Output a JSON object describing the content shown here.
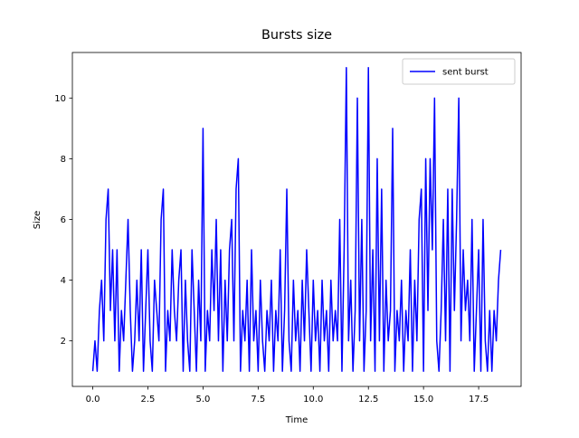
{
  "chart_data": {
    "type": "line",
    "title": "Bursts size",
    "x_label": "Time",
    "y_label": "Size",
    "x": [
      0.0,
      0.1,
      0.2,
      0.3,
      0.4,
      0.5,
      0.6,
      0.7,
      0.8,
      0.9,
      1.0,
      1.1,
      1.2,
      1.3,
      1.4,
      1.5,
      1.6,
      1.7,
      1.8,
      1.9,
      2.0,
      2.1,
      2.2,
      2.3,
      2.4,
      2.5,
      2.6,
      2.7,
      2.8,
      2.9,
      3.0,
      3.1,
      3.2,
      3.3,
      3.4,
      3.5,
      3.6,
      3.7,
      3.8,
      3.9,
      4.0,
      4.1,
      4.2,
      4.3,
      4.4,
      4.5,
      4.6,
      4.7,
      4.8,
      4.9,
      5.0,
      5.1,
      5.2,
      5.3,
      5.4,
      5.5,
      5.6,
      5.7,
      5.8,
      5.9,
      6.0,
      6.1,
      6.2,
      6.3,
      6.4,
      6.5,
      6.6,
      6.7,
      6.8,
      6.9,
      7.0,
      7.1,
      7.2,
      7.3,
      7.4,
      7.5,
      7.6,
      7.7,
      7.8,
      7.9,
      8.0,
      8.1,
      8.2,
      8.3,
      8.4,
      8.5,
      8.6,
      8.7,
      8.8,
      8.9,
      9.0,
      9.1,
      9.2,
      9.3,
      9.4,
      9.5,
      9.6,
      9.7,
      9.8,
      9.9,
      10.0,
      10.1,
      10.2,
      10.3,
      10.4,
      10.5,
      10.6,
      10.7,
      10.8,
      10.9,
      11.0,
      11.1,
      11.2,
      11.3,
      11.4,
      11.5,
      11.6,
      11.7,
      11.8,
      11.9,
      12.0,
      12.1,
      12.2,
      12.3,
      12.4,
      12.5,
      12.6,
      12.7,
      12.8,
      12.9,
      13.0,
      13.1,
      13.2,
      13.3,
      13.4,
      13.5,
      13.6,
      13.7,
      13.8,
      13.9,
      14.0,
      14.1,
      14.2,
      14.3,
      14.4,
      14.5,
      14.6,
      14.7,
      14.8,
      14.9,
      15.0,
      15.1,
      15.2,
      15.3,
      15.4,
      15.5,
      15.6,
      15.7,
      15.8,
      15.9,
      16.0,
      16.1,
      16.2,
      16.3,
      16.4,
      16.5,
      16.6,
      16.7,
      16.8,
      16.9,
      17.0,
      17.1,
      17.2,
      17.3,
      17.4,
      17.5,
      17.6,
      17.7,
      17.8,
      17.9,
      18.0,
      18.1,
      18.2,
      18.3,
      18.4,
      18.5
    ],
    "series": [
      {
        "name": "sent burst",
        "color": "#0000ff",
        "values": [
          1,
          2,
          1,
          3,
          4,
          2,
          6,
          7,
          3,
          5,
          2,
          5,
          1,
          3,
          2,
          4,
          6,
          3,
          1,
          2,
          4,
          2,
          5,
          1,
          3,
          5,
          2,
          1,
          4,
          3,
          2,
          6,
          7,
          1,
          3,
          2,
          5,
          3,
          2,
          4,
          5,
          1,
          4,
          2,
          1,
          5,
          3,
          1,
          4,
          2,
          9,
          1,
          3,
          2,
          5,
          3,
          6,
          2,
          5,
          1,
          4,
          2,
          5,
          6,
          2,
          7,
          8,
          1,
          3,
          2,
          4,
          1,
          5,
          2,
          3,
          1,
          4,
          2,
          1,
          3,
          2,
          4,
          1,
          3,
          2,
          5,
          1,
          3,
          7,
          2,
          1,
          4,
          2,
          3,
          1,
          4,
          2,
          5,
          3,
          1,
          4,
          2,
          3,
          1,
          4,
          2,
          3,
          1,
          4,
          2,
          3,
          2,
          6,
          1,
          5,
          11,
          2,
          4,
          1,
          3,
          10,
          2,
          6,
          1,
          3,
          11,
          2,
          5,
          1,
          8,
          2,
          7,
          1,
          4,
          2,
          3,
          9,
          1,
          3,
          2,
          4,
          1,
          3,
          2,
          5,
          1,
          4,
          2,
          6,
          7,
          1,
          8,
          3,
          8,
          5,
          10,
          2,
          1,
          3,
          6,
          2,
          7,
          1,
          7,
          3,
          6,
          10,
          2,
          5,
          3,
          4,
          2,
          6,
          1,
          3,
          5,
          1,
          6,
          2,
          1,
          3,
          1,
          3,
          2,
          4,
          5
        ]
      }
    ],
    "xlim": [
      -0.925,
      19.425
    ],
    "ylim": [
      0.5,
      11.5
    ],
    "xticks": [
      {
        "value": 0,
        "label": "0.0"
      },
      {
        "value": 2.5,
        "label": "2.5"
      },
      {
        "value": 5,
        "label": "5.0"
      },
      {
        "value": 7.5,
        "label": "7.5"
      },
      {
        "value": 10,
        "label": "10.0"
      },
      {
        "value": 12.5,
        "label": "12.5"
      },
      {
        "value": 15,
        "label": "15.0"
      },
      {
        "value": 17.5,
        "label": "17.5"
      }
    ],
    "yticks": [
      2,
      4,
      6,
      8,
      10
    ],
    "grid": false,
    "legend": "upper right"
  }
}
